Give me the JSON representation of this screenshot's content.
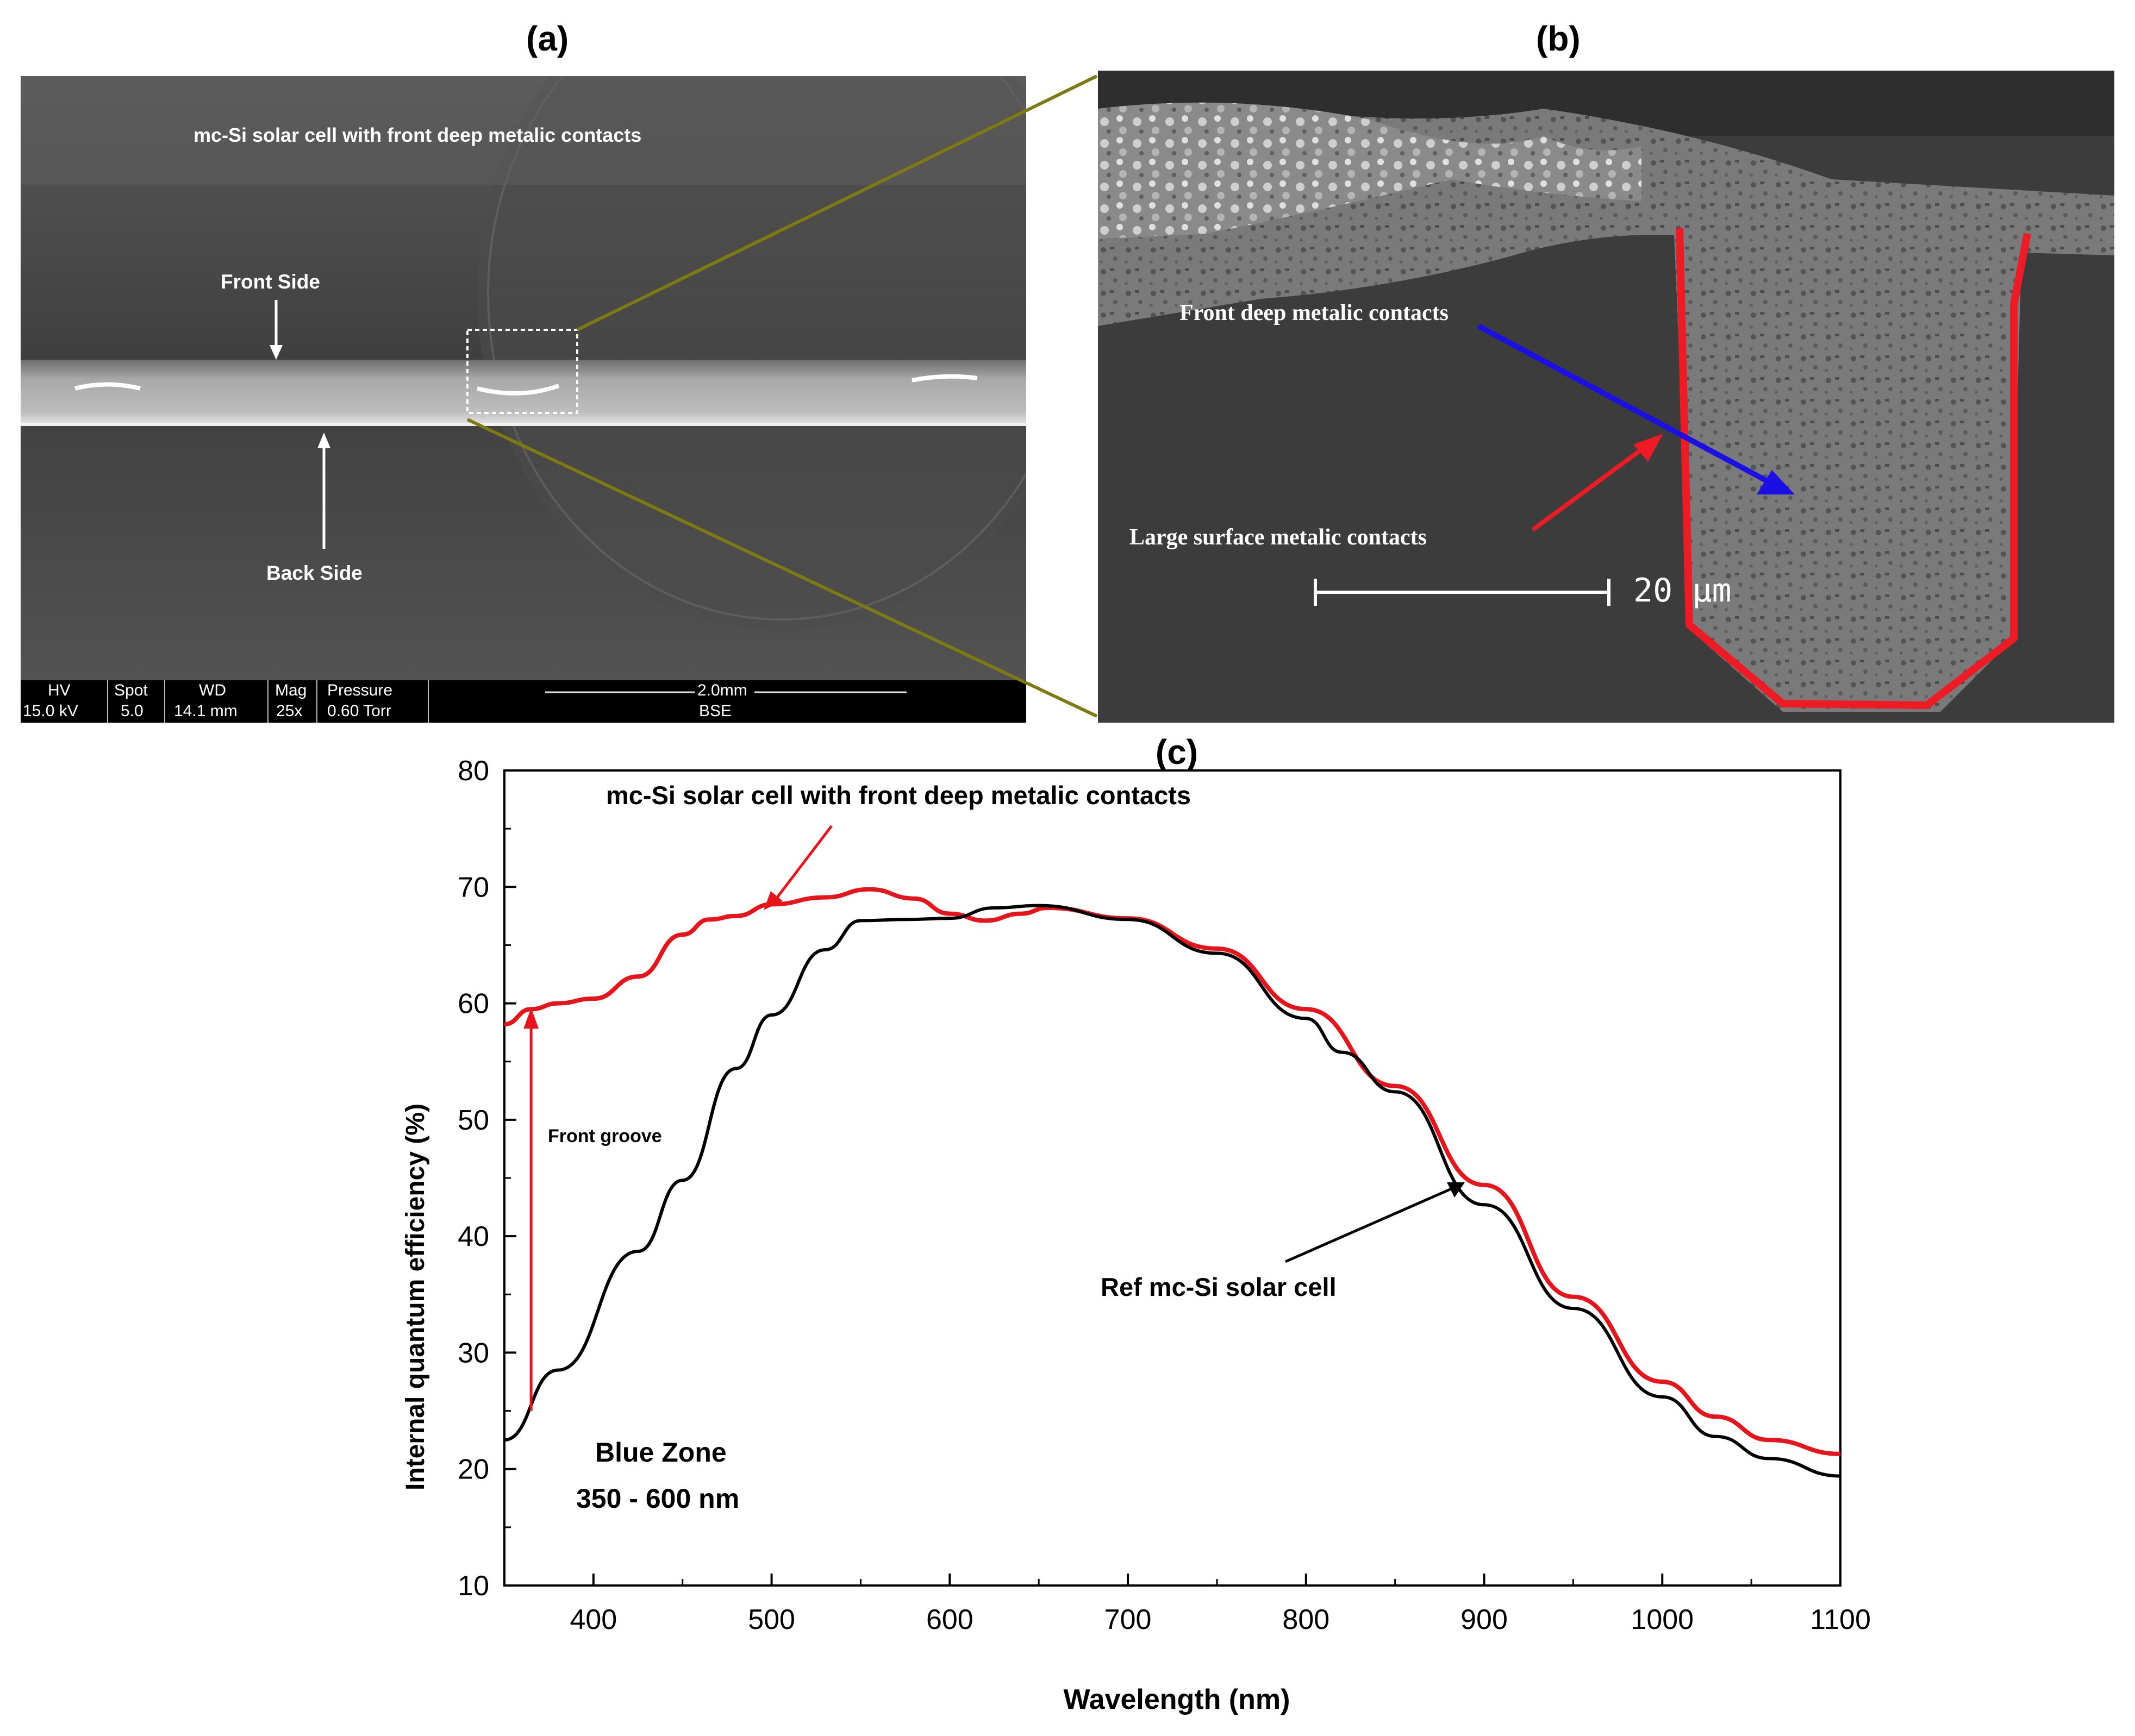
{
  "panel_a": {
    "label": "(a)",
    "title": "mc-Si solar cell with front deep metalic contacts",
    "front_side": "Front Side",
    "back_side": "Back Side",
    "sem_bar": {
      "headers": [
        "HV",
        "Spot",
        "WD",
        "Mag",
        "Pressure"
      ],
      "values": [
        "15.0 kV",
        "5.0",
        "14.1 mm",
        "25x",
        "0.60  Torr"
      ],
      "scale": "2.0mm",
      "mode": "BSE"
    }
  },
  "panel_b": {
    "label": "(b)",
    "front_contacts": "Front deep metalic contacts",
    "surface_contacts": "Large surface metalic contacts",
    "scale": "20 µm"
  },
  "panel_c": {
    "label": "(c)",
    "annotation_red": "mc-Si solar cell with  front deep metalic contacts",
    "annotation_black": "Ref mc-Si solar cell",
    "front_groove": "Front groove",
    "blue_zone": "Blue Zone",
    "blue_range": "350 - 600 nm"
  },
  "chart_data": {
    "type": "line",
    "xlabel": "Wavelength (nm)",
    "ylabel": "Internal quantum efficiency (%)",
    "xlim": [
      350,
      1100
    ],
    "ylim": [
      10,
      80
    ],
    "xticks": [
      400,
      500,
      600,
      700,
      800,
      900,
      1000,
      1100
    ],
    "yticks": [
      10,
      20,
      30,
      40,
      50,
      60,
      70,
      80
    ],
    "series": [
      {
        "color": "#e8141b",
        "x": [
          350,
          365,
          380,
          400,
          425,
          450,
          465,
          480,
          500,
          530,
          555,
          580,
          600,
          620,
          640,
          655,
          700,
          750,
          800,
          850,
          900,
          950,
          1000,
          1030,
          1060,
          1100
        ],
        "y": [
          58.2,
          59.5,
          60.0,
          60.4,
          62.3,
          65.9,
          67.2,
          67.5,
          68.5,
          69.1,
          69.8,
          69.0,
          67.7,
          67.1,
          67.7,
          68.2,
          67.3,
          64.7,
          59.5,
          52.9,
          44.4,
          34.8,
          27.5,
          24.5,
          22.5,
          21.3
        ]
      },
      {
        "color": "#000000",
        "x": [
          350,
          380,
          425,
          450,
          480,
          500,
          530,
          550,
          575,
          600,
          625,
          650,
          700,
          750,
          800,
          820,
          850,
          900,
          950,
          1000,
          1030,
          1060,
          1100
        ],
        "y": [
          22.5,
          28.5,
          38.7,
          44.8,
          54.4,
          59.0,
          64.6,
          67.1,
          67.2,
          67.3,
          68.2,
          68.4,
          67.2,
          64.3,
          58.7,
          55.8,
          52.4,
          42.7,
          33.8,
          26.2,
          22.8,
          20.9,
          19.4
        ]
      }
    ]
  }
}
